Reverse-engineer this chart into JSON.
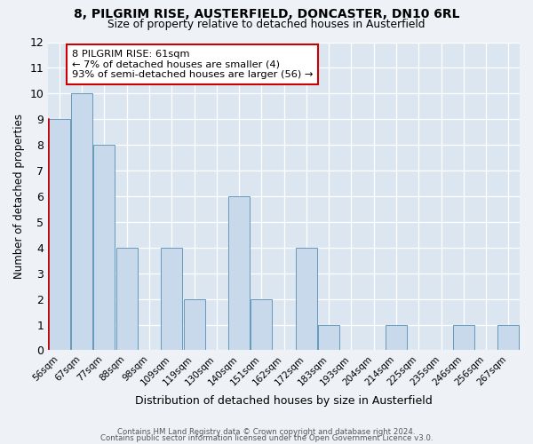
{
  "title": "8, PILGRIM RISE, AUSTERFIELD, DONCASTER, DN10 6RL",
  "subtitle": "Size of property relative to detached houses in Austerfield",
  "xlabel": "Distribution of detached houses by size in Austerfield",
  "ylabel": "Number of detached properties",
  "bins": [
    "56sqm",
    "67sqm",
    "77sqm",
    "88sqm",
    "98sqm",
    "109sqm",
    "119sqm",
    "130sqm",
    "140sqm",
    "151sqm",
    "162sqm",
    "172sqm",
    "183sqm",
    "193sqm",
    "204sqm",
    "214sqm",
    "225sqm",
    "235sqm",
    "246sqm",
    "256sqm",
    "267sqm"
  ],
  "values": [
    9,
    10,
    8,
    4,
    0,
    4,
    2,
    0,
    6,
    2,
    0,
    4,
    1,
    0,
    0,
    1,
    0,
    0,
    1,
    0,
    1
  ],
  "bar_color": "#c8d9ec",
  "bar_edgecolor": "#6699bb",
  "highlight_bar_index": 0,
  "highlight_edgecolor": "#cc0000",
  "annotation_text": "8 PILGRIM RISE: 61sqm\n← 7% of detached houses are smaller (4)\n93% of semi-detached houses are larger (56) →",
  "annotation_box_edgecolor": "#cc0000",
  "ylim": [
    0,
    12
  ],
  "yticks": [
    0,
    1,
    2,
    3,
    4,
    5,
    6,
    7,
    8,
    9,
    10,
    11,
    12
  ],
  "footer1": "Contains HM Land Registry data © Crown copyright and database right 2024.",
  "footer2": "Contains public sector information licensed under the Open Government Licence v3.0.",
  "bg_color": "#eef2f7",
  "plot_bg_color": "#dce6f0"
}
